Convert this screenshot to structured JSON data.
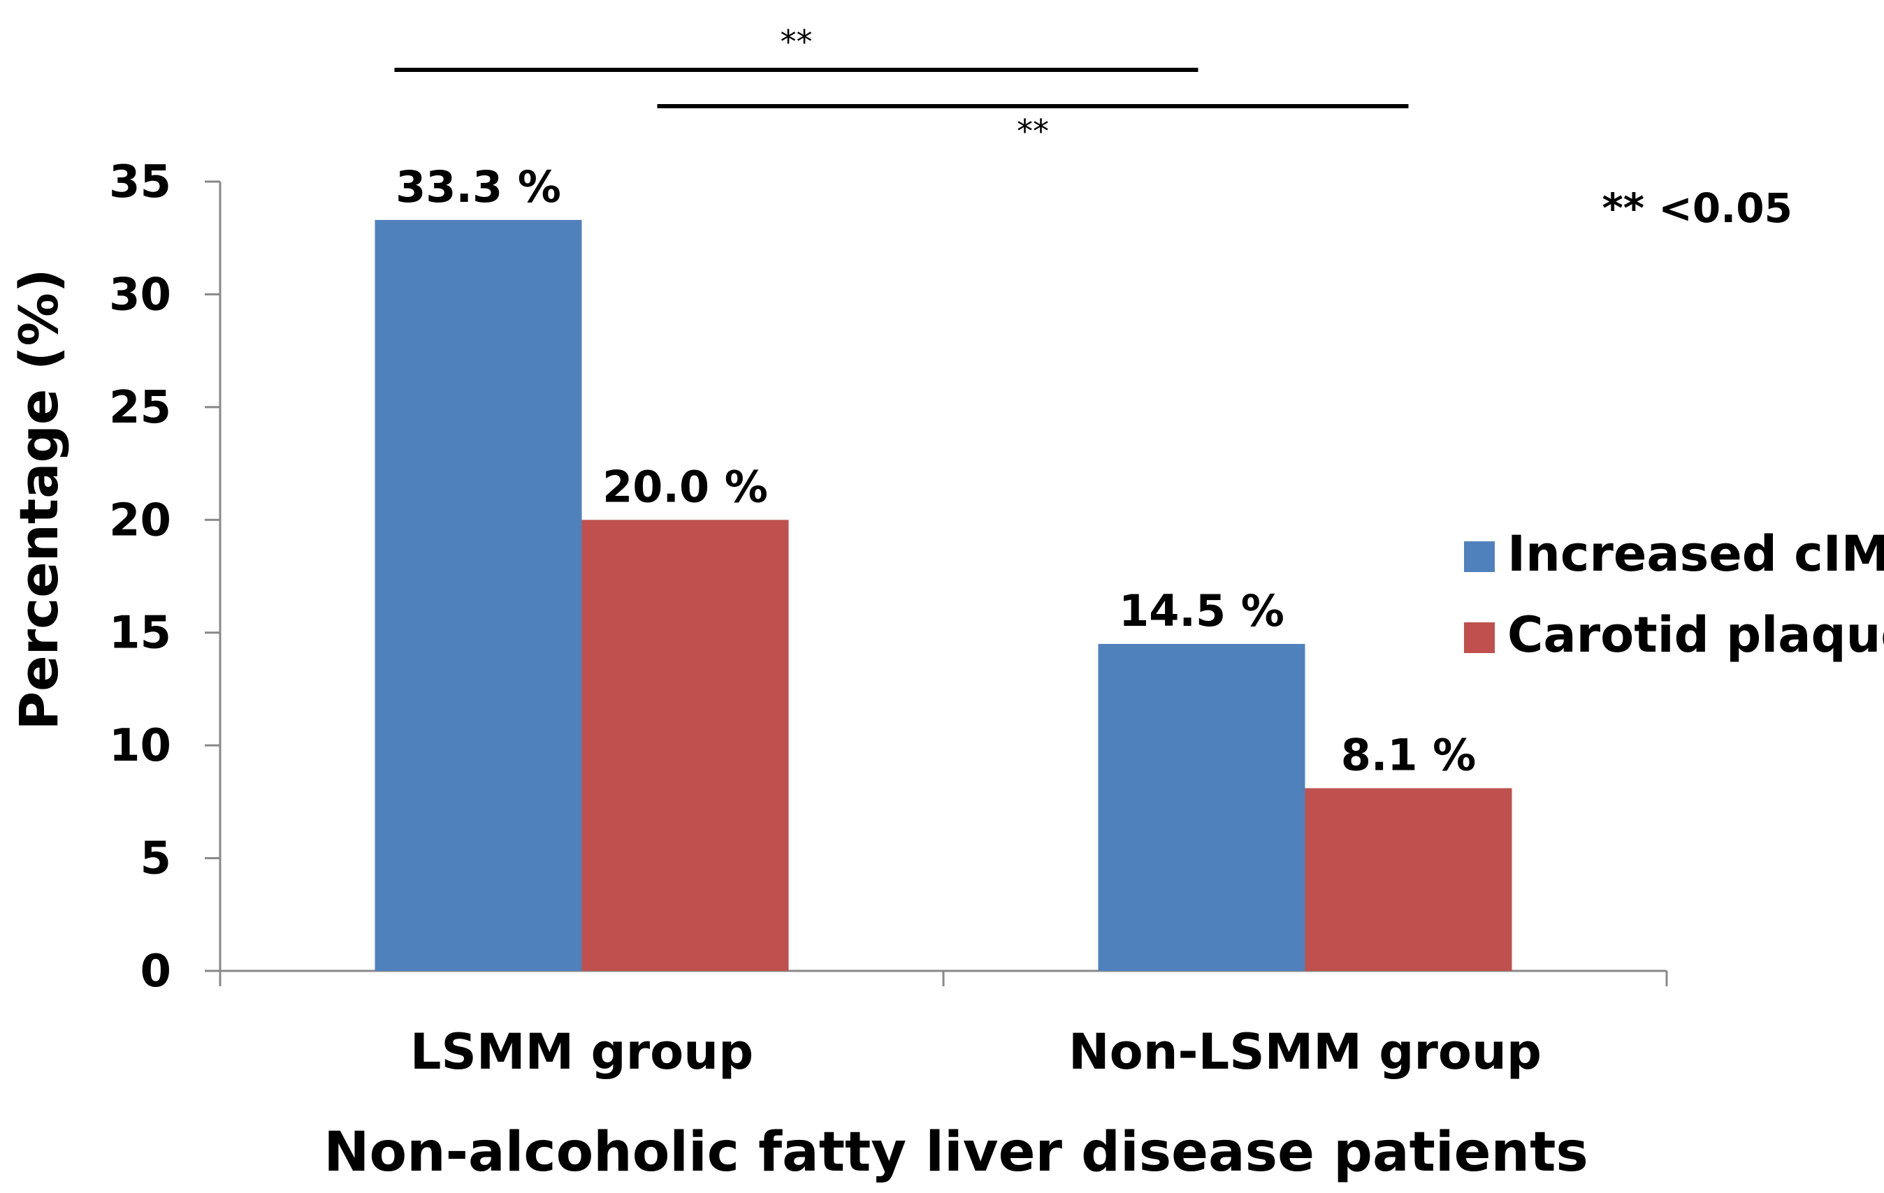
{
  "chart_data": {
    "type": "bar",
    "title": "",
    "xlabel": "Non-alcoholic fatty liver disease patients",
    "ylabel": "Percentage (%)",
    "ylim": [
      0,
      35
    ],
    "yticks": [
      0,
      5,
      10,
      15,
      20,
      25,
      30,
      35
    ],
    "ytick_labels": [
      "0",
      "5",
      "10",
      "15",
      "20",
      "25",
      "30",
      "35"
    ],
    "grid": false,
    "legend_position": "right",
    "categories": [
      "LSMM group",
      "Non-LSMM group"
    ],
    "series": [
      {
        "name": "Increased cIMT",
        "color": "#4F81BD",
        "values": [
          33.3,
          14.5
        ],
        "labels": [
          "33.3 %",
          "14.5 %"
        ]
      },
      {
        "name": "Carotid plaque",
        "color": "#C0504D",
        "values": [
          20.0,
          8.1
        ],
        "labels": [
          "20.0 %",
          "8.1 %"
        ]
      }
    ],
    "significance": {
      "brackets": [
        {
          "label": "**",
          "from": "LSMM group / Increased cIMT",
          "to": "Non-LSMM group / Increased cIMT"
        },
        {
          "label": "**",
          "from": "LSMM group / Carotid plaque",
          "to": "Non-LSMM group / Carotid plaque"
        }
      ],
      "note": "** <0.05"
    }
  }
}
